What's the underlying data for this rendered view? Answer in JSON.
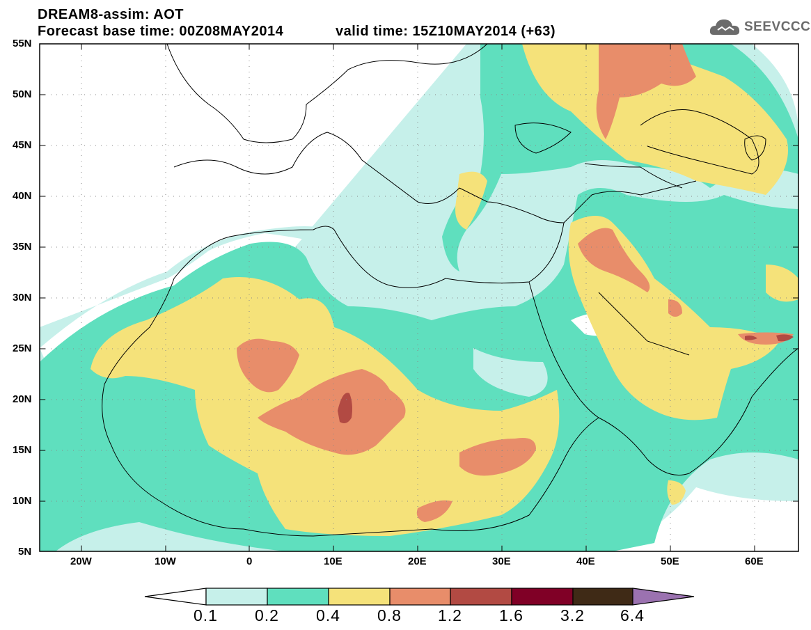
{
  "title_line1": "DREAM8-assim: AOT",
  "title_line2": "Forecast base time: 00Z08MAY2014",
  "valid_time": "valid time: 15Z10MAY2014 (+63)",
  "logo_text": "SEEVCCC",
  "lat_labels": [
    "55N",
    "50N",
    "45N",
    "40N",
    "35N",
    "30N",
    "25N",
    "20N",
    "15N",
    "10N",
    "5N"
  ],
  "lon_labels": [
    "20W",
    "10W",
    "0",
    "10E",
    "20E",
    "30E",
    "40E",
    "50E",
    "60E"
  ],
  "colorbar": {
    "levels": [
      "0.1",
      "0.2",
      "0.4",
      "0.8",
      "1.2",
      "1.6",
      "3.2",
      "6.4"
    ],
    "colors": [
      "#ffffff",
      "#c6f0ea",
      "#5fdfbe",
      "#f5e27a",
      "#e88d6a",
      "#b24a43",
      "#800026",
      "#3f2a16",
      "#9b72b0"
    ]
  },
  "map_extent": {
    "lon": [
      -25,
      65
    ],
    "lat": [
      5,
      55
    ]
  }
}
